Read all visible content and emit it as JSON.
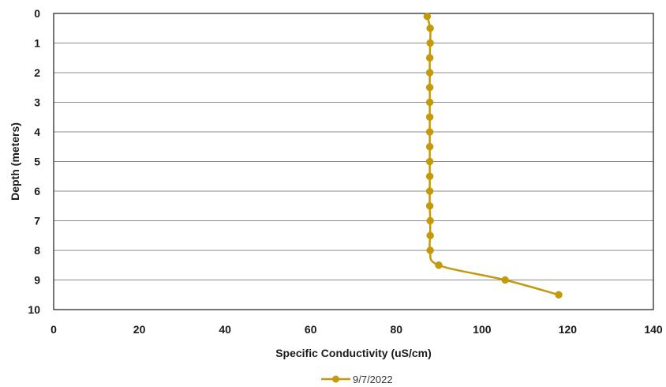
{
  "chart_data": {
    "type": "line",
    "title": "",
    "xlabel": "Specific Conductivity (uS/cm)",
    "ylabel": "Depth (meters)",
    "xlim": [
      0,
      140
    ],
    "ylim": [
      0,
      10
    ],
    "y_inverted": true,
    "x_ticks": [
      "0",
      "20",
      "40",
      "60",
      "80",
      "100",
      "120",
      "140"
    ],
    "y_ticks": [
      "0",
      "1",
      "2",
      "3",
      "4",
      "5",
      "6",
      "7",
      "8",
      "9",
      "10"
    ],
    "grid": "horizontal",
    "legend_position": "bottom-center",
    "series": [
      {
        "name": "9/7/2022",
        "color": "#C49A0A",
        "marker": "circle",
        "line": "smooth",
        "points": [
          {
            "x": 87.2,
            "y": 0.1
          },
          {
            "x": 87.9,
            "y": 0.5
          },
          {
            "x": 87.9,
            "y": 1.0
          },
          {
            "x": 87.8,
            "y": 1.5
          },
          {
            "x": 87.8,
            "y": 2.0
          },
          {
            "x": 87.8,
            "y": 2.5
          },
          {
            "x": 87.8,
            "y": 3.0
          },
          {
            "x": 87.8,
            "y": 3.5
          },
          {
            "x": 87.8,
            "y": 4.0
          },
          {
            "x": 87.8,
            "y": 4.5
          },
          {
            "x": 87.8,
            "y": 5.0
          },
          {
            "x": 87.8,
            "y": 5.5
          },
          {
            "x": 87.8,
            "y": 6.0
          },
          {
            "x": 87.8,
            "y": 6.5
          },
          {
            "x": 87.9,
            "y": 7.0
          },
          {
            "x": 87.9,
            "y": 7.5
          },
          {
            "x": 87.9,
            "y": 8.0
          },
          {
            "x": 89.9,
            "y": 8.5
          },
          {
            "x": 105.4,
            "y": 9.0
          },
          {
            "x": 117.9,
            "y": 9.5
          }
        ]
      }
    ]
  }
}
